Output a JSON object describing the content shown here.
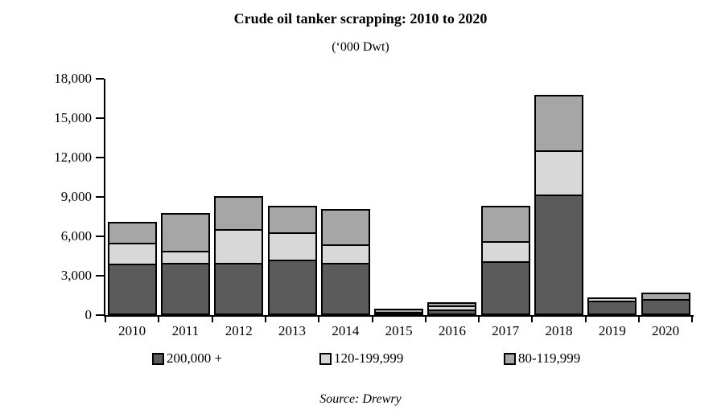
{
  "header": {
    "title": "Crude oil tanker scrapping: 2010 to 2020",
    "subtitle": "(‘000 Dwt)"
  },
  "footer": {
    "source": "Source: Drewry"
  },
  "colors": {
    "dark": "#5B5B5B",
    "light": "#D8D8D8",
    "medium": "#A6A6A6",
    "axis": "#000000",
    "background": "#FFFFFF"
  },
  "legend": {
    "position": "bottom",
    "items": [
      {
        "label": "200,000 +",
        "color_key": "dark"
      },
      {
        "label": "120-199,999",
        "color_key": "light"
      },
      {
        "label": "80-119,999",
        "color_key": "medium"
      }
    ]
  },
  "chart_data": {
    "type": "bar",
    "stacked": true,
    "title": "Crude oil tanker scrapping: 2010 to 2020",
    "subtitle": "('000 Dwt)",
    "xlabel": "",
    "ylabel": "",
    "units": "'000 Dwt",
    "grid": false,
    "ylim": [
      0,
      18000
    ],
    "yticks": [
      0,
      3000,
      6000,
      9000,
      12000,
      15000,
      18000
    ],
    "ytick_labels": [
      "0",
      "3,000",
      "6,000",
      "9,000",
      "12,000",
      "15,000",
      "18,000"
    ],
    "categories": [
      "2010",
      "2011",
      "2012",
      "2013",
      "2014",
      "2015",
      "2016",
      "2017",
      "2018",
      "2019",
      "2020"
    ],
    "series": [
      {
        "name": "200,000 +",
        "color_key": "dark",
        "values": [
          3900,
          4000,
          4000,
          4250,
          4000,
          200,
          450,
          4100,
          9200,
          1100,
          1250
        ]
      },
      {
        "name": "120-199,999",
        "color_key": "light",
        "values": [
          1750,
          1000,
          2700,
          2200,
          1500,
          0,
          400,
          1650,
          3450,
          350,
          0
        ]
      },
      {
        "name": "80-119,999",
        "color_key": "medium",
        "values": [
          1700,
          3000,
          2600,
          2150,
          2850,
          350,
          400,
          2850,
          4350,
          0,
          600
        ]
      }
    ],
    "totals": [
      7350,
      8000,
      9300,
      8600,
      8350,
      550,
      1250,
      8600,
      17000,
      1450,
      1850
    ]
  }
}
